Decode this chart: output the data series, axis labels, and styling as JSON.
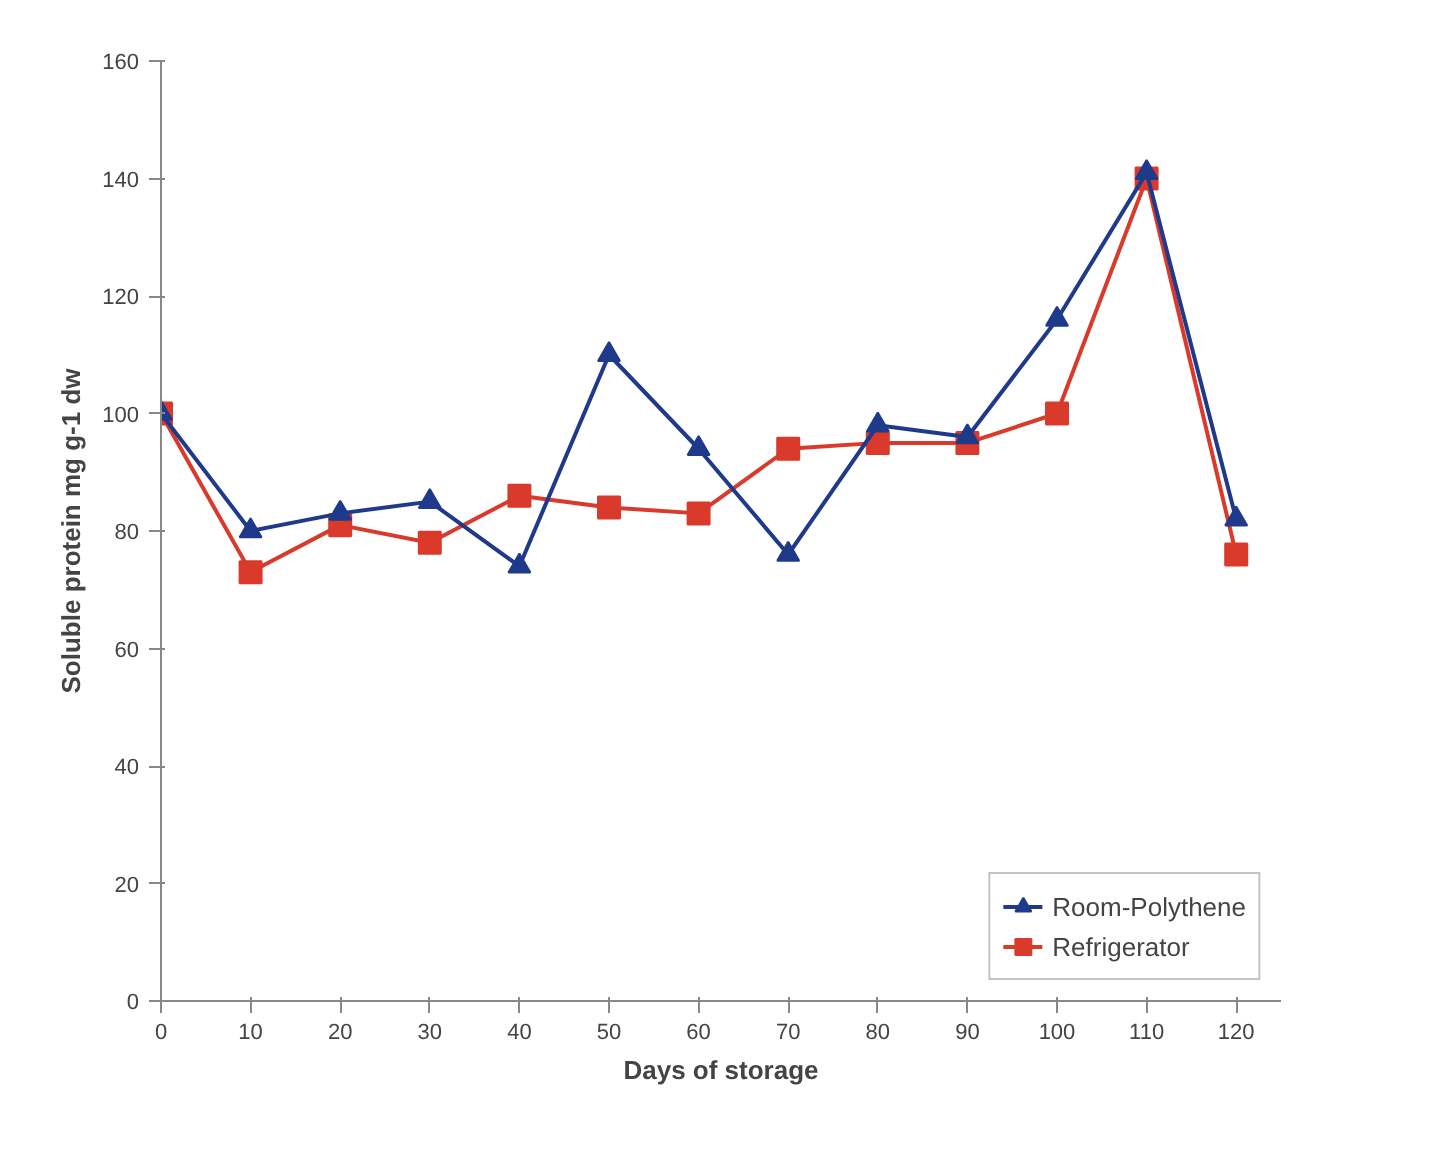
{
  "chart_data": {
    "type": "line",
    "xlabel": "Days of storage",
    "ylabel": "Soluble protein mg g-1 dw",
    "x": [
      0,
      10,
      20,
      30,
      40,
      50,
      60,
      70,
      80,
      90,
      100,
      110,
      120
    ],
    "series": [
      {
        "name": "Room-Polythene",
        "color": "#1f3a8a",
        "marker": "triangle",
        "values": [
          100,
          80,
          83,
          85,
          74,
          110,
          94,
          76,
          98,
          96,
          116,
          141,
          82
        ]
      },
      {
        "name": "Refrigerator",
        "color": "#d93a2b",
        "marker": "square",
        "values": [
          100,
          73,
          81,
          78,
          86,
          84,
          83,
          94,
          95,
          95,
          100,
          140,
          76
        ]
      }
    ],
    "xlim": [
      0,
      125
    ],
    "xticks": [
      0,
      10,
      20,
      30,
      40,
      50,
      60,
      70,
      80,
      90,
      100,
      110,
      120
    ],
    "ylim": [
      0,
      160
    ],
    "yticks": [
      0,
      20,
      40,
      60,
      80,
      100,
      120,
      140,
      160
    ],
    "grid": false,
    "legend": "bottom right",
    "line_style": "solid"
  }
}
